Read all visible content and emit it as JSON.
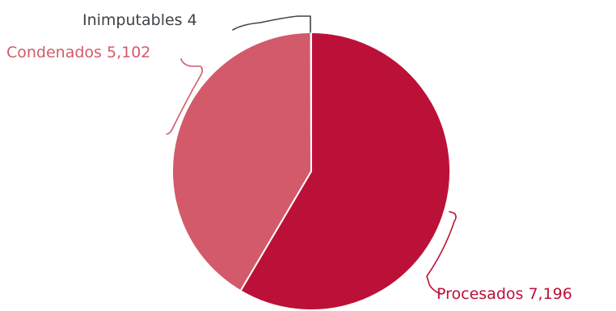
{
  "chart_data": {
    "type": "pie",
    "title": "",
    "slices": [
      {
        "label": "Procesados",
        "value": 7196,
        "value_text": "7,196",
        "color": "#bb1138"
      },
      {
        "label": "Condenados",
        "value": 5102,
        "value_text": "5,102",
        "color": "#d35a6a"
      },
      {
        "label": "Inimputables",
        "value": 4,
        "value_text": "4",
        "color": "#4a4a4a"
      }
    ],
    "label_colors": {
      "Procesados": "#bb1138",
      "Condenados": "#d35a6a",
      "Inimputables": "#3e4347"
    },
    "legend": "none",
    "start": "top",
    "direction": "clockwise"
  }
}
